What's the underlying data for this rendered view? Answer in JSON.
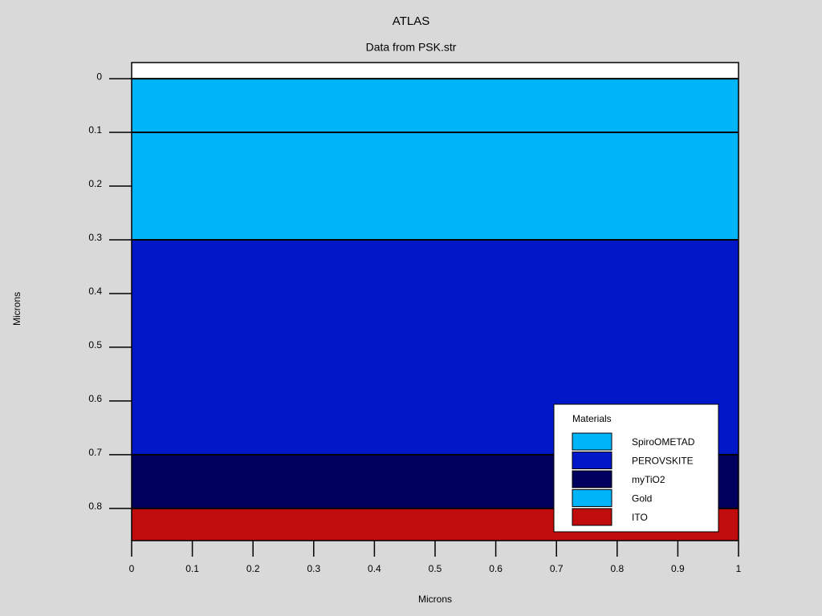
{
  "chart_data": {
    "type": "structure",
    "title": "ATLAS",
    "subtitle": "Data from PSK.str",
    "xlabel": "Microns",
    "ylabel": "Microns",
    "legend_title": "Materials",
    "legend_order": [
      1,
      2,
      3,
      0,
      4
    ],
    "series": [
      {
        "name": "Gold",
        "color": "#00b4fa",
        "values": [
          0,
          0.1
        ]
      },
      {
        "name": "SpiroOMETAD",
        "color": "#00b4fa",
        "values": [
          0.1,
          0.3
        ]
      },
      {
        "name": "PEROVSKITE",
        "color": "#0018c8",
        "values": [
          0.3,
          0.7
        ]
      },
      {
        "name": "myTiO2",
        "color": "#00005e",
        "values": [
          0.7,
          0.8
        ]
      },
      {
        "name": "ITO",
        "color": "#c00c0c",
        "values": [
          0.8,
          0.86
        ]
      }
    ],
    "xlim": [
      0,
      1
    ],
    "xticks": [
      0,
      0.1,
      0.2,
      0.3,
      0.4,
      0.5,
      0.6,
      0.7,
      0.8,
      0.9,
      1
    ],
    "ylim": [
      -0.03,
      0.86
    ],
    "yticks": [
      0,
      0.1,
      0.2,
      0.3,
      0.4,
      0.5,
      0.6,
      0.7,
      0.8
    ],
    "y_inverted": true
  }
}
